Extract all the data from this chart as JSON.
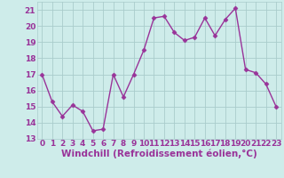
{
  "x": [
    0,
    1,
    2,
    3,
    4,
    5,
    6,
    7,
    8,
    9,
    10,
    11,
    12,
    13,
    14,
    15,
    16,
    17,
    18,
    19,
    20,
    21,
    22,
    23
  ],
  "y": [
    17.0,
    15.3,
    14.4,
    15.1,
    14.7,
    13.5,
    13.6,
    17.0,
    15.6,
    17.0,
    18.5,
    20.5,
    20.6,
    19.6,
    19.1,
    19.3,
    20.5,
    19.4,
    20.4,
    21.1,
    17.3,
    17.1,
    16.4,
    15.0
  ],
  "xlabel": "Windchill (Refroidissement éolien,°C)",
  "ylim": [
    13,
    21.5
  ],
  "xlim": [
    -0.5,
    23.5
  ],
  "yticks": [
    13,
    14,
    15,
    16,
    17,
    18,
    19,
    20,
    21
  ],
  "xticks": [
    0,
    1,
    2,
    3,
    4,
    5,
    6,
    7,
    8,
    9,
    10,
    11,
    12,
    13,
    14,
    15,
    16,
    17,
    18,
    19,
    20,
    21,
    22,
    23
  ],
  "xtick_labels": [
    "0",
    "1",
    "2",
    "3",
    "4",
    "5",
    "6",
    "7",
    "8",
    "9",
    "10",
    "11",
    "12",
    "13",
    "14",
    "15",
    "16",
    "17",
    "18",
    "19",
    "20",
    "21",
    "22",
    "23"
  ],
  "ytick_labels": [
    "13",
    "14",
    "15",
    "16",
    "17",
    "18",
    "19",
    "20",
    "21"
  ],
  "line_color": "#993399",
  "marker": "D",
  "marker_size": 2.5,
  "bg_color": "#ceecea",
  "grid_color": "#aacccc",
  "tick_label_fontsize": 6.5,
  "xlabel_fontsize": 7.5,
  "linewidth": 1.0
}
